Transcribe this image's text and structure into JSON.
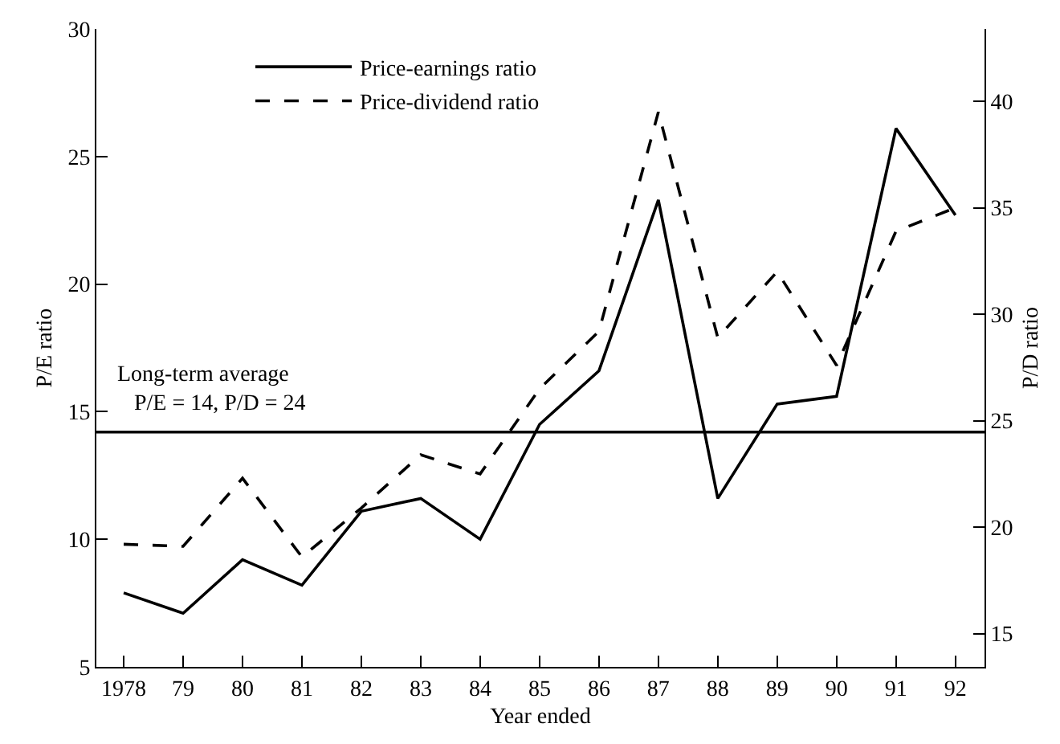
{
  "chart_data": {
    "type": "line",
    "xlabel": "Year ended",
    "ylabel": "P/E ratio",
    "y2label": "P/D ratio",
    "x": [
      1978,
      1979,
      1980,
      1981,
      1982,
      1983,
      1984,
      1985,
      1986,
      1987,
      1988,
      1989,
      1990,
      1991,
      1992
    ],
    "series": [
      {
        "name": "Price-earnings ratio",
        "color": "#000000",
        "line_style": "solid",
        "values": [
          7.9,
          7.1,
          9.2,
          8.2,
          11.1,
          11.6,
          10.0,
          14.5,
          16.6,
          23.3,
          11.6,
          15.3,
          15.6,
          26.1,
          22.7
        ]
      },
      {
        "name": "Price-dividend ratio",
        "color": "#000000",
        "line_style": "dashed",
        "axis": "y2",
        "values": [
          19.2,
          19.1,
          22.3,
          18.6,
          20.9,
          23.4,
          22.5,
          26.5,
          29.2,
          39.5,
          28.9,
          32.0,
          27.6,
          33.9,
          35.0
        ]
      }
    ],
    "xlim": [
      1977.54,
      1992.49
    ],
    "xticks": [
      {
        "value": 1978,
        "label": "1978"
      },
      {
        "value": 1979,
        "label": "79"
      },
      {
        "value": 1980,
        "label": "80"
      },
      {
        "value": 1981,
        "label": "81"
      },
      {
        "value": 1982,
        "label": "82"
      },
      {
        "value": 1983,
        "label": "83"
      },
      {
        "value": 1984,
        "label": "84"
      },
      {
        "value": 1985,
        "label": "85"
      },
      {
        "value": 1986,
        "label": "86"
      },
      {
        "value": 1987,
        "label": "87"
      },
      {
        "value": 1988,
        "label": "88"
      },
      {
        "value": 1989,
        "label": "89"
      },
      {
        "value": 1990,
        "label": "90"
      },
      {
        "value": 1991,
        "label": "91"
      },
      {
        "value": 1992,
        "label": "92"
      }
    ],
    "ylim": [
      5,
      30
    ],
    "yticks": [
      5,
      10,
      15,
      20,
      25,
      30
    ],
    "y2lim": [
      13.44,
      43.4
    ],
    "y2ticks": [
      15,
      20,
      25,
      30,
      35,
      40
    ],
    "ref_lines": [
      {
        "axis": "y",
        "value": 14.2,
        "color": "#000000",
        "label": "Long-term average\n   P/E = 14, P/D = 24"
      }
    ],
    "legend": "top",
    "marker": "none"
  }
}
